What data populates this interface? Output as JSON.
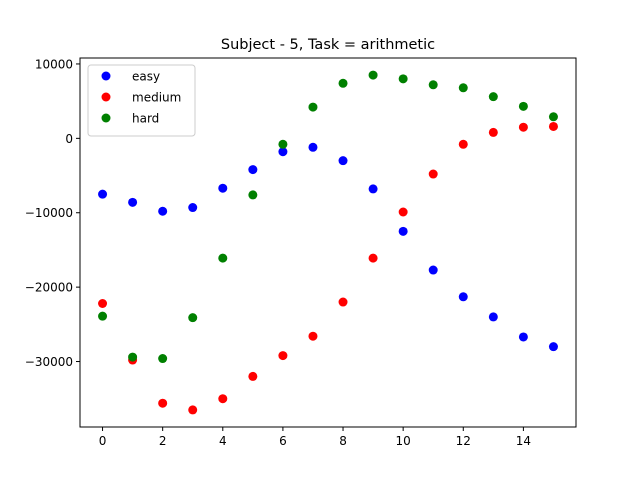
{
  "chart_data": {
    "type": "scatter",
    "title": "Subject - 5, Task = arithmetic",
    "xlabel": "",
    "ylabel": "",
    "xlim": [
      -0.75,
      15.75
    ],
    "ylim": [
      -38800,
      10800
    ],
    "x_ticks": [
      0,
      2,
      4,
      6,
      8,
      10,
      12,
      14
    ],
    "x_tick_labels": [
      "0",
      "2",
      "4",
      "6",
      "8",
      "10",
      "12",
      "14"
    ],
    "y_ticks": [
      10000,
      0,
      -10000,
      -20000,
      -30000
    ],
    "y_tick_labels": [
      "10000",
      "0",
      "−10000",
      "−20000",
      "−30000"
    ],
    "legend_position": "top-left",
    "grid": false,
    "x": [
      0,
      1,
      2,
      3,
      4,
      5,
      6,
      7,
      8,
      9,
      10,
      11,
      12,
      13,
      14,
      15
    ],
    "series": [
      {
        "name": "easy",
        "color": "#0000ff",
        "values": [
          -7500,
          -8600,
          -9800,
          -9300,
          -6700,
          -4200,
          -1800,
          -1200,
          -3000,
          -6800,
          -12500,
          -17700,
          -21300,
          -24000,
          -26700,
          -28000
        ]
      },
      {
        "name": "medium",
        "color": "#ff0000",
        "values": [
          -22200,
          -29800,
          -35600,
          -36500,
          -35000,
          -32000,
          -29200,
          -26600,
          -22000,
          -16100,
          -9900,
          -4800,
          -800,
          800,
          1500,
          1600
        ]
      },
      {
        "name": "hard",
        "color": "#008000",
        "values": [
          -23900,
          -29400,
          -29600,
          -24100,
          -16100,
          -7600,
          -800,
          4200,
          7400,
          8500,
          8000,
          7200,
          6800,
          5600,
          4300,
          2900
        ]
      }
    ]
  }
}
